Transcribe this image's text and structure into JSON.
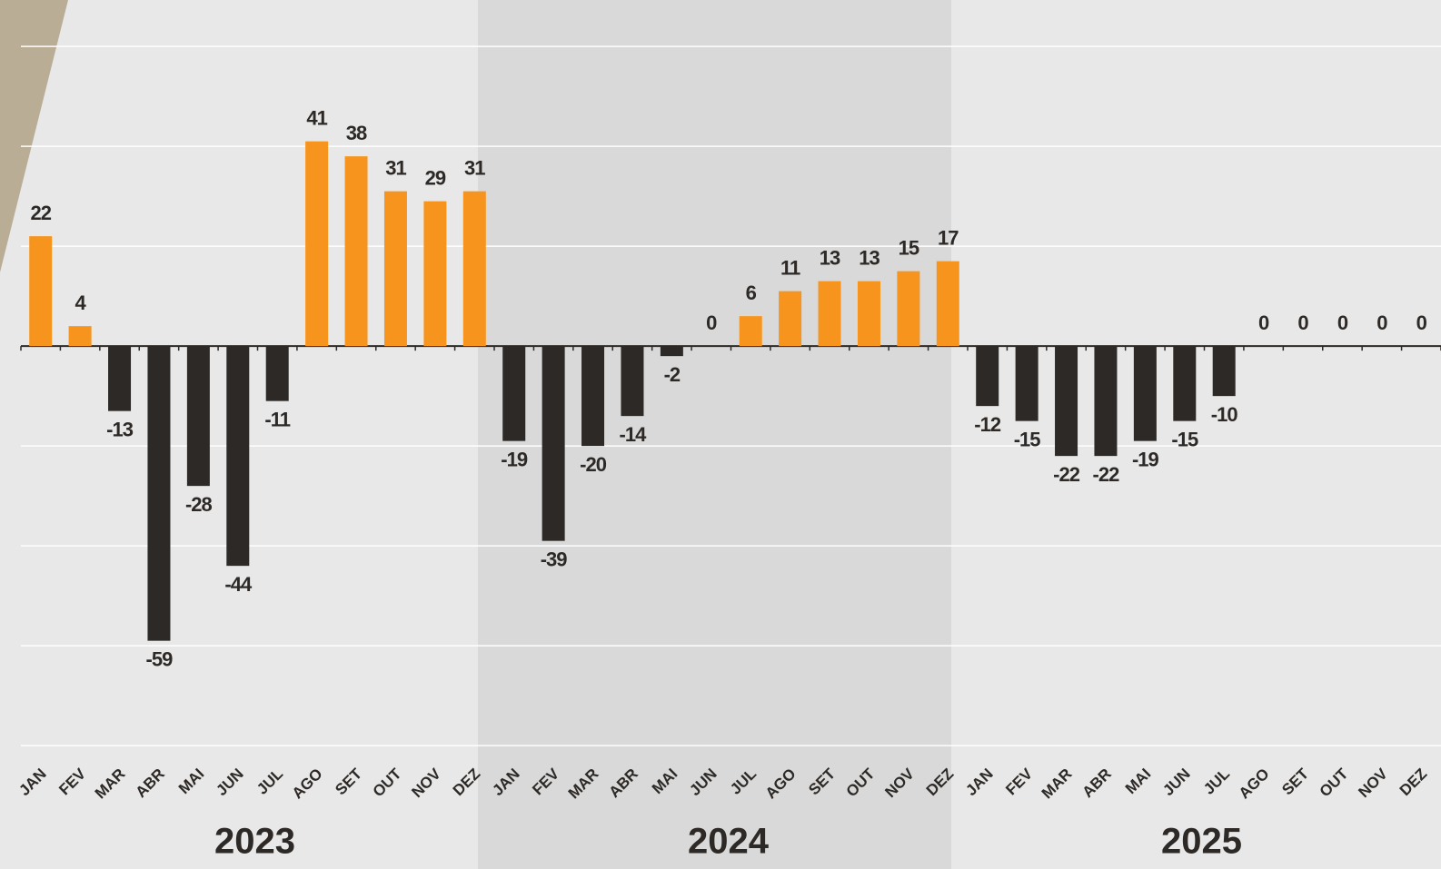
{
  "chart_data": {
    "type": "bar",
    "groups": [
      "2023",
      "2024",
      "2025"
    ],
    "categories": [
      "JAN",
      "FEV",
      "MAR",
      "ABR",
      "MAI",
      "JUN",
      "JUL",
      "AGO",
      "SET",
      "OUT",
      "NOV",
      "DEZ",
      "JAN",
      "FEV",
      "MAR",
      "ABR",
      "MAI",
      "JUN",
      "JUL",
      "AGO",
      "SET",
      "OUT",
      "NOV",
      "DEZ",
      "JAN",
      "FEV",
      "MAR",
      "ABR",
      "MAI",
      "JUN",
      "JUL",
      "AGO",
      "SET",
      "OUT",
      "NOV",
      "DEZ"
    ],
    "values": [
      22,
      4,
      -13,
      -59,
      -28,
      -44,
      -11,
      41,
      38,
      31,
      29,
      31,
      -19,
      -39,
      -20,
      -14,
      -2,
      0,
      6,
      11,
      13,
      13,
      15,
      17,
      -12,
      -15,
      -22,
      -22,
      -19,
      -15,
      -10,
      0,
      0,
      0,
      0,
      0
    ],
    "positive_color": "#f7941d",
    "negative_color": "#2d2926",
    "ylim": [
      -104.7,
      69.3
    ],
    "yticks": [
      -80,
      -60,
      -40,
      -20,
      0,
      20,
      40,
      60
    ],
    "grid": true
  }
}
